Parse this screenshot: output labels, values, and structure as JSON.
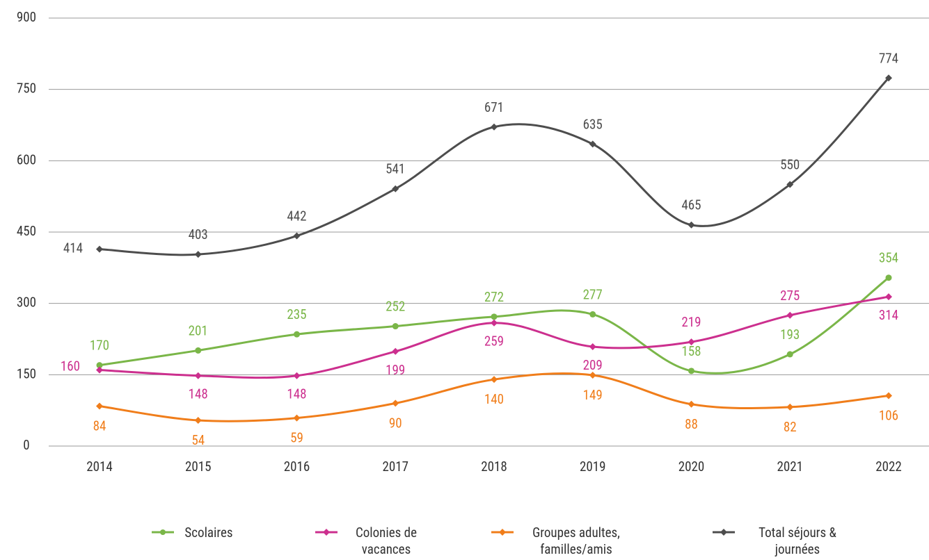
{
  "chart_data": {
    "type": "line",
    "categories": [
      "2014",
      "2015",
      "2016",
      "2017",
      "2018",
      "2019",
      "2020",
      "2021",
      "2022"
    ],
    "series": [
      {
        "name": "Scolaires",
        "color": "#7ab648",
        "marker": "circle",
        "values": [
          170,
          201,
          235,
          252,
          272,
          277,
          158,
          193,
          354
        ]
      },
      {
        "name": "Colonies de vacances",
        "color": "#cc2f8e",
        "marker": "diamond",
        "values": [
          160,
          148,
          148,
          199,
          259,
          209,
          219,
          275,
          314
        ]
      },
      {
        "name": "Groupes adultes, familles/amis",
        "color": "#f07d1a",
        "marker": "diamond",
        "values": [
          84,
          54,
          59,
          90,
          140,
          149,
          88,
          82,
          106
        ]
      },
      {
        "name": "Total séjours & journées",
        "color": "#4d4d4d",
        "marker": "diamond",
        "values": [
          414,
          403,
          442,
          541,
          671,
          635,
          465,
          550,
          774
        ]
      }
    ],
    "ylim": [
      0,
      900
    ],
    "yticks": [
      0,
      150,
      300,
      450,
      600,
      750,
      900
    ],
    "grid": true,
    "smooth": true,
    "legend": "bottom"
  }
}
